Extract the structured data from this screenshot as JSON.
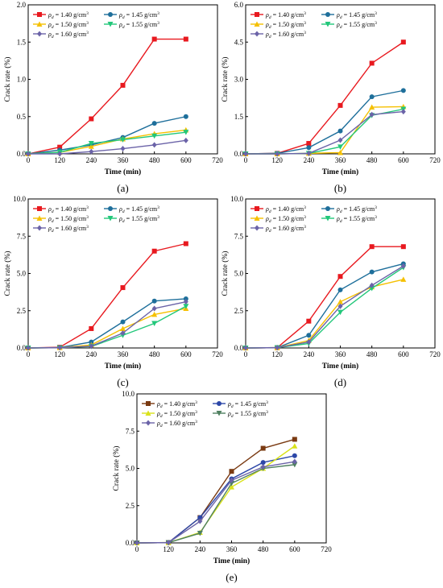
{
  "figure": {
    "colors": {
      "d140": "#e8191f",
      "d145": "#1e6f9b",
      "d150": "#f5c000",
      "d155": "#22c77a",
      "d160": "#6b63a8",
      "e140": "#7a3a12",
      "e145": "#2c47a8",
      "e150": "#d9e21a",
      "e155": "#4f8060",
      "e160": "#6b63a8"
    }
  },
  "chart_data": [
    {
      "type": "line",
      "panel_label": "(a)",
      "xlabel": "Time (min)",
      "ylabel": "Crack rate (%)",
      "xlim": [
        0,
        720
      ],
      "ylim": [
        0,
        2.0
      ],
      "xticks": [
        "0",
        "120",
        "240",
        "360",
        "480",
        "600",
        "720"
      ],
      "yticks": [
        "0.0",
        "0.5",
        "1.0",
        "1.5",
        "2.0"
      ],
      "x": [
        0,
        120,
        240,
        360,
        480,
        600
      ],
      "legend": "top-left",
      "series": [
        {
          "name": "= 1.40 g/cm",
          "sym": "ρ",
          "sub": "d",
          "sup": "3",
          "color": "d140",
          "marker": "square",
          "values": [
            0,
            0.09,
            0.47,
            0.92,
            1.54,
            1.54
          ]
        },
        {
          "name": "= 1.45 g/cm",
          "sym": "ρ",
          "sub": "d",
          "sup": "3",
          "color": "d145",
          "marker": "circle",
          "values": [
            0,
            0.05,
            0.12,
            0.22,
            0.41,
            0.5
          ]
        },
        {
          "name": "= 1.50 g/cm",
          "sym": "ρ",
          "sub": "d",
          "sup": "3",
          "color": "d150",
          "marker": "triangle-up",
          "values": [
            0,
            0.02,
            0.1,
            0.2,
            0.27,
            0.32
          ]
        },
        {
          "name": "= 1.55 g/cm",
          "sym": "ρ",
          "sub": "d",
          "sup": "3",
          "color": "d155",
          "marker": "triangle-down",
          "values": [
            0,
            0.02,
            0.14,
            0.19,
            0.24,
            0.29
          ]
        },
        {
          "name": "= 1.60 g/cm",
          "sym": "ρ",
          "sub": "d",
          "sup": "3",
          "color": "d160",
          "marker": "diamond",
          "values": [
            0,
            0.0,
            0.03,
            0.07,
            0.12,
            0.18
          ]
        }
      ]
    },
    {
      "type": "line",
      "panel_label": "(b)",
      "xlabel": "Time (min)",
      "ylabel": "Crack rate (%)",
      "xlim": [
        0,
        720
      ],
      "ylim": [
        0,
        6.0
      ],
      "xticks": [
        "0",
        "120",
        "240",
        "360",
        "480",
        "600",
        "720"
      ],
      "yticks": [
        "0.0",
        "1.5",
        "3.0",
        "4.5",
        "6.0"
      ],
      "x": [
        0,
        120,
        240,
        360,
        480,
        600
      ],
      "legend": "top-left",
      "series": [
        {
          "name": "= 1.40 g/cm",
          "sym": "ρ",
          "sub": "d",
          "sup": "3",
          "color": "d140",
          "marker": "square",
          "values": [
            0,
            0.02,
            0.42,
            1.95,
            3.65,
            4.5
          ]
        },
        {
          "name": "= 1.45 g/cm",
          "sym": "ρ",
          "sub": "d",
          "sup": "3",
          "color": "d145",
          "marker": "circle",
          "values": [
            0,
            0.02,
            0.25,
            0.92,
            2.3,
            2.55
          ]
        },
        {
          "name": "= 1.50 g/cm",
          "sym": "ρ",
          "sub": "d",
          "sup": "3",
          "color": "d150",
          "marker": "triangle-up",
          "values": [
            0,
            0.0,
            0.02,
            0.05,
            1.88,
            1.9
          ]
        },
        {
          "name": "= 1.55 g/cm",
          "sym": "ρ",
          "sub": "d",
          "sup": "3",
          "color": "d155",
          "marker": "triangle-down",
          "values": [
            0,
            0.0,
            0.02,
            0.28,
            1.55,
            1.8
          ]
        },
        {
          "name": "= 1.60 g/cm",
          "sym": "ρ",
          "sub": "d",
          "sup": "3",
          "color": "d160",
          "marker": "diamond",
          "values": [
            0,
            0.0,
            0.02,
            0.55,
            1.58,
            1.7
          ]
        }
      ]
    },
    {
      "type": "line",
      "panel_label": "(c)",
      "xlabel": "Time (min)",
      "ylabel": "Crack rate (%)",
      "xlim": [
        0,
        720
      ],
      "ylim": [
        0,
        10.0
      ],
      "xticks": [
        "0",
        "120",
        "240",
        "360",
        "480",
        "600",
        "720"
      ],
      "yticks": [
        "0.0",
        "2.5",
        "5.0",
        "7.5",
        "10.0"
      ],
      "x": [
        0,
        120,
        240,
        360,
        480,
        600
      ],
      "legend": "top-left",
      "series": [
        {
          "name": "= 1.40 g/cm",
          "sym": "ρ",
          "sub": "d",
          "sup": "3",
          "color": "d140",
          "marker": "square",
          "values": [
            0,
            0.05,
            1.3,
            4.05,
            6.5,
            7.0
          ]
        },
        {
          "name": "= 1.45 g/cm",
          "sym": "ρ",
          "sub": "d",
          "sup": "3",
          "color": "d145",
          "marker": "circle",
          "values": [
            0,
            0.03,
            0.4,
            1.75,
            3.15,
            3.3
          ]
        },
        {
          "name": "= 1.50 g/cm",
          "sym": "ρ",
          "sub": "d",
          "sup": "3",
          "color": "d150",
          "marker": "triangle-up",
          "values": [
            0,
            0.02,
            0.2,
            1.3,
            2.25,
            2.65
          ]
        },
        {
          "name": "= 1.55 g/cm",
          "sym": "ρ",
          "sub": "d",
          "sup": "3",
          "color": "d155",
          "marker": "triangle-down",
          "values": [
            0,
            0.02,
            0.1,
            0.85,
            1.65,
            2.8
          ]
        },
        {
          "name": "= 1.60 g/cm",
          "sym": "ρ",
          "sub": "d",
          "sup": "3",
          "color": "d160",
          "marker": "diamond",
          "values": [
            0,
            0.02,
            0.12,
            1.0,
            2.65,
            3.1
          ]
        }
      ]
    },
    {
      "type": "line",
      "panel_label": "(d)",
      "xlabel": "Time (min)",
      "ylabel": "Crack rate (%)",
      "xlim": [
        0,
        720
      ],
      "ylim": [
        0,
        10.0
      ],
      "xticks": [
        "0",
        "120",
        "240",
        "360",
        "480",
        "600",
        "720"
      ],
      "yticks": [
        "0.0",
        "2.5",
        "5.0",
        "7.5",
        "10.0"
      ],
      "x": [
        0,
        120,
        240,
        360,
        480,
        600
      ],
      "legend": "top-left",
      "series": [
        {
          "name": "= 1.40 g/cm",
          "sym": "ρ",
          "sub": "d",
          "sup": "3",
          "color": "d140",
          "marker": "square",
          "values": [
            0,
            0.02,
            1.8,
            4.8,
            6.8,
            6.8
          ]
        },
        {
          "name": "= 1.45 g/cm",
          "sym": "ρ",
          "sub": "d",
          "sup": "3",
          "color": "d145",
          "marker": "circle",
          "values": [
            0,
            0.02,
            0.85,
            3.9,
            5.1,
            5.65
          ]
        },
        {
          "name": "= 1.50 g/cm",
          "sym": "ρ",
          "sub": "d",
          "sup": "3",
          "color": "d150",
          "marker": "triangle-up",
          "values": [
            0,
            0.02,
            0.5,
            3.1,
            4.1,
            4.6
          ]
        },
        {
          "name": "= 1.55 g/cm",
          "sym": "ρ",
          "sub": "d",
          "sup": "3",
          "color": "d155",
          "marker": "triangle-down",
          "values": [
            0,
            0.02,
            0.3,
            2.4,
            4.0,
            5.4
          ]
        },
        {
          "name": "= 1.60 g/cm",
          "sym": "ρ",
          "sub": "d",
          "sup": "3",
          "color": "d160",
          "marker": "diamond",
          "values": [
            0,
            0.02,
            0.4,
            2.8,
            4.2,
            5.5
          ]
        }
      ]
    },
    {
      "type": "line",
      "panel_label": "(e)",
      "xlabel": "Time (min)",
      "ylabel": "Crack rate (%)",
      "xlim": [
        0,
        720
      ],
      "ylim": [
        0,
        10.0
      ],
      "xticks": [
        "0",
        "120",
        "240",
        "360",
        "480",
        "600",
        "720"
      ],
      "yticks": [
        "0.0",
        "2.5",
        "5.0",
        "7.5",
        "10.0"
      ],
      "x": [
        0,
        120,
        240,
        360,
        480,
        600
      ],
      "legend": "top-left",
      "series": [
        {
          "name": "= 1.40 g/cm",
          "sym": "ρ",
          "sub": "d",
          "sup": "3",
          "color": "e140",
          "marker": "square",
          "values": [
            0,
            0.02,
            1.7,
            4.8,
            6.35,
            6.95
          ]
        },
        {
          "name": "= 1.45 g/cm",
          "sym": "ρ",
          "sub": "d",
          "sup": "3",
          "color": "e145",
          "marker": "circle",
          "values": [
            0,
            0.02,
            1.7,
            4.3,
            5.4,
            5.85
          ]
        },
        {
          "name": "= 1.50 g/cm",
          "sym": "ρ",
          "sub": "d",
          "sup": "3",
          "color": "e150",
          "marker": "triangle-up",
          "values": [
            0,
            0.02,
            0.7,
            3.75,
            5.0,
            6.5
          ]
        },
        {
          "name": "= 1.55 g/cm",
          "sym": "ρ",
          "sub": "d",
          "sup": "3",
          "color": "e155",
          "marker": "triangle-down",
          "values": [
            0,
            0.02,
            0.65,
            4.0,
            5.0,
            5.25
          ]
        },
        {
          "name": "= 1.60 g/cm",
          "sym": "ρ",
          "sub": "d",
          "sup": "3",
          "color": "e160",
          "marker": "diamond",
          "values": [
            0,
            0.02,
            1.45,
            4.2,
            5.1,
            5.45
          ]
        }
      ]
    }
  ]
}
